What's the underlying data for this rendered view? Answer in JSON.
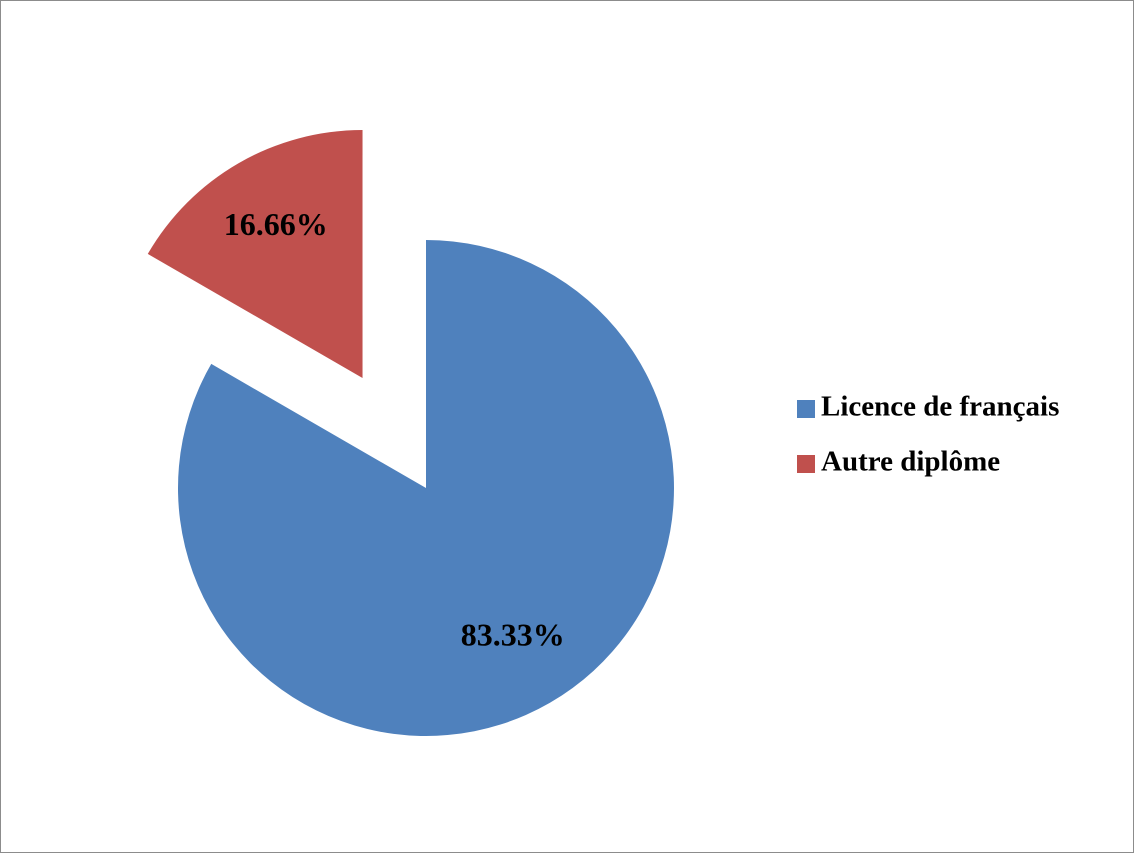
{
  "chart_data": {
    "type": "pie",
    "categories": [
      "Licence de français",
      "Autre diplôme"
    ],
    "values": [
      83.33,
      16.66
    ],
    "value_labels": [
      "83.33%",
      "16.66%"
    ],
    "colors": [
      "#4f81bd",
      "#c0504d"
    ],
    "exploded": [
      false,
      true
    ],
    "legend": "right"
  }
}
